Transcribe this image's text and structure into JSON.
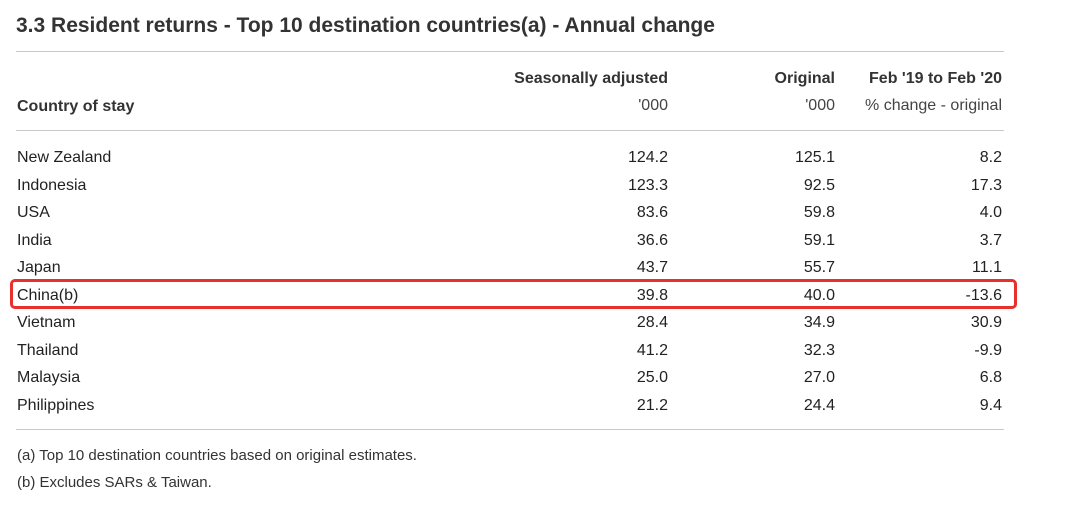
{
  "title": "3.3 Resident returns - Top 10 destination countries(a) - Annual change",
  "header": {
    "col0_label": "Country of stay",
    "col1_top": "Seasonally adjusted",
    "col1_unit": "'000",
    "col2_top": "Original",
    "col2_unit": "'000",
    "col3_top": "Feb '19 to Feb '20",
    "col3_unit": "% change - original"
  },
  "rows": [
    {
      "country": "New Zealand",
      "sa": "124.2",
      "orig": "125.1",
      "change": "8.2"
    },
    {
      "country": "Indonesia",
      "sa": "123.3",
      "orig": "92.5",
      "change": "17.3"
    },
    {
      "country": "USA",
      "sa": "83.6",
      "orig": "59.8",
      "change": "4.0"
    },
    {
      "country": "India",
      "sa": "36.6",
      "orig": "59.1",
      "change": "3.7"
    },
    {
      "country": "Japan",
      "sa": "43.7",
      "orig": "55.7",
      "change": "11.1"
    },
    {
      "country": "China(b)",
      "sa": "39.8",
      "orig": "40.0",
      "change": "-13.6"
    },
    {
      "country": "Vietnam",
      "sa": "28.4",
      "orig": "34.9",
      "change": "30.9"
    },
    {
      "country": "Thailand",
      "sa": "41.2",
      "orig": "32.3",
      "change": "-9.9"
    },
    {
      "country": "Malaysia",
      "sa": "25.0",
      "orig": "27.0",
      "change": "6.8"
    },
    {
      "country": "Philippines",
      "sa": "21.2",
      "orig": "24.4",
      "change": "9.4"
    }
  ],
  "footnotes": {
    "a": "(a) Top 10 destination countries based on original estimates.",
    "b": "(b) Excludes SARs & Taiwan."
  },
  "highlight": {
    "row_country": "China(b)",
    "color": "#e8312c"
  }
}
